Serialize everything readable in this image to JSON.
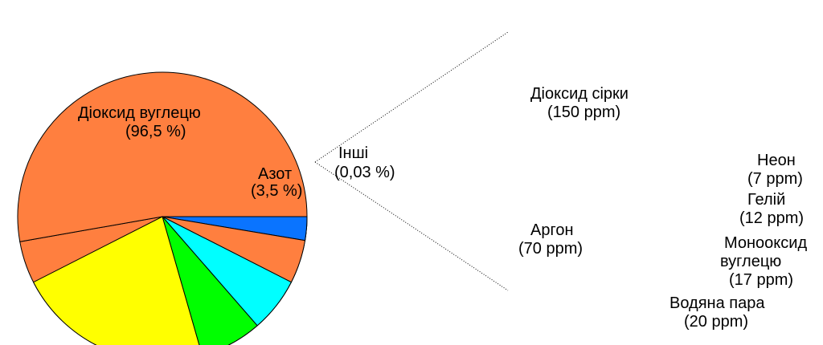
{
  "chart_data": [
    {
      "type": "pie",
      "title": "",
      "slices": [
        {
          "label": "Діоксид вуглецю",
          "display": "(96,5 %)",
          "value": 96.5,
          "color": "#ff7f3f"
        },
        {
          "label": "Азот",
          "display": "(3,5 %)",
          "value": 3.5,
          "color": "#ff7f3f"
        },
        {
          "label": "Інші",
          "display": "(0,03 %)",
          "value": 0.03,
          "color": "#0a74ff"
        }
      ]
    },
    {
      "type": "pie",
      "title": "Інші",
      "unit": "ppm",
      "slices": [
        {
          "label": "Діоксид сірки",
          "display": "(150 ppm)",
          "value": 150,
          "color": "#ffff00"
        },
        {
          "label": "Аргон",
          "display": "(70 ppm)",
          "value": 70,
          "color": "#00ff00"
        },
        {
          "label": "Водяна пара",
          "display": "(20 ppm)",
          "value": 20,
          "color": "#00ffff"
        },
        {
          "label": "Монооксид вуглецю",
          "display": "(17 ppm)",
          "value": 17,
          "color": "#ff7f3f"
        },
        {
          "label": "Гелій",
          "display": "(12 ppm)",
          "value": 12,
          "color": "#0a74ff"
        },
        {
          "label": "Неон",
          "display": "(7 ppm)",
          "value": 7,
          "color": "#ff0000"
        }
      ]
    }
  ],
  "labels": {
    "co2_name": "Діоксид вуглецю",
    "co2_value": "(96,5 %)",
    "n2_name": "Азот",
    "n2_value": "(3,5 %)",
    "others_name": "Інші",
    "others_value": "(0,03 %)",
    "so2_name": "Діоксид сірки",
    "so2_value": "(150 ppm)",
    "ar_name": "Аргон",
    "ar_value": "(70 ppm)",
    "ne_name": "Неон",
    "ne_value": "(7 ppm)",
    "he_name": "Гелій",
    "he_value": "(12 ppm)",
    "co_name_1": "Монооксид",
    "co_name_2": "вуглецю",
    "co_value": "(17 ppm)",
    "h2o_name": "Водяна пара",
    "h2o_value": "(20 ppm)"
  }
}
